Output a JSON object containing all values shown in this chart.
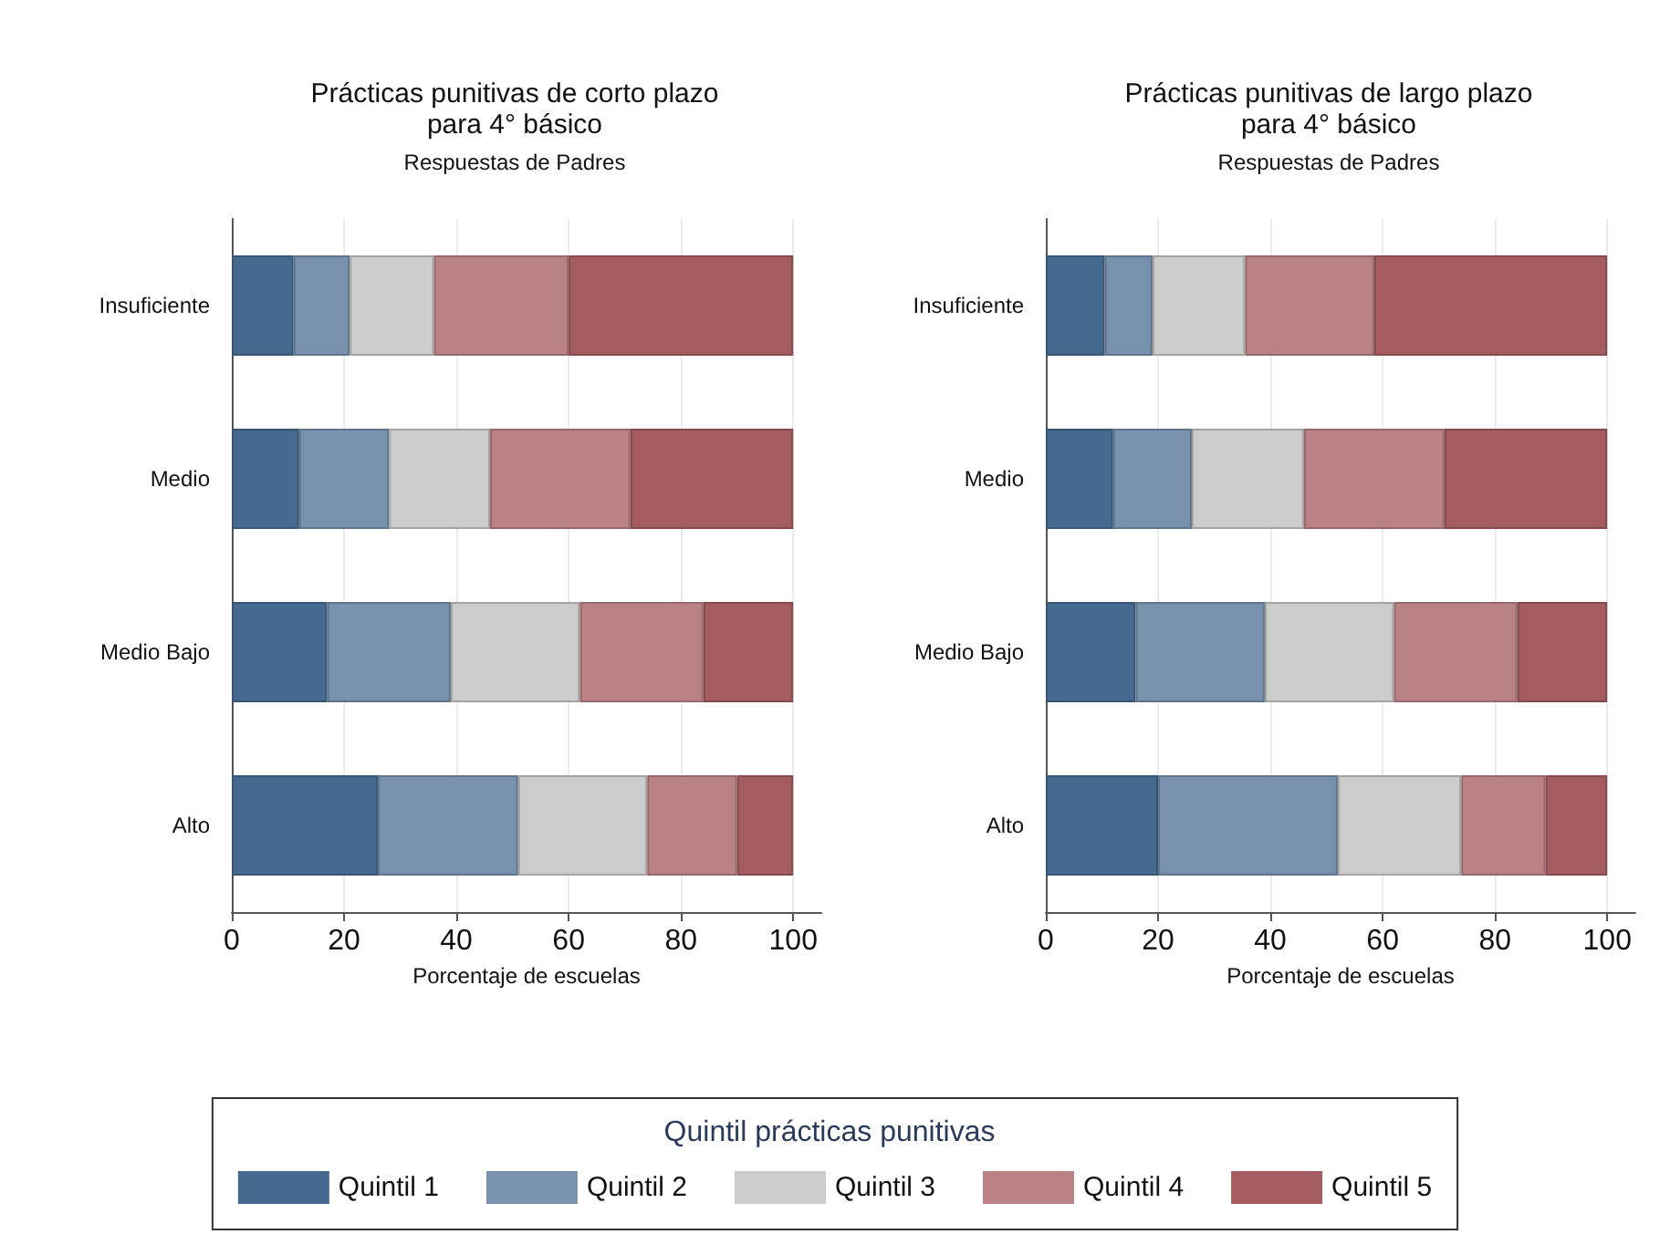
{
  "chart_data": [
    {
      "type": "bar",
      "orientation": "horizontal",
      "stacked": true,
      "title": "Prácticas punitivas de corto plazo\npara 4° básico",
      "subtitle": "Respuestas de Padres",
      "xlabel": "Porcentaje de escuelas",
      "categories": [
        "Insuficiente",
        "Medio",
        "Medio Bajo",
        "Alto"
      ],
      "xlim": [
        0,
        105
      ],
      "xticks": [
        0,
        20,
        40,
        60,
        80,
        100
      ],
      "grid": "x",
      "legend": "bottom",
      "legend_title": "Quintil prácticas punitivas",
      "series": [
        {
          "name": "Quintil 1",
          "color": "#466a8f",
          "values": [
            11,
            12,
            17,
            26
          ]
        },
        {
          "name": "Quintil 2",
          "color": "#7892ad",
          "values": [
            10,
            16,
            22,
            25
          ]
        },
        {
          "name": "Quintil 3",
          "color": "#cccccc",
          "values": [
            15,
            18,
            23,
            23
          ]
        },
        {
          "name": "Quintil 4",
          "color": "#ba8285",
          "values": [
            24,
            25,
            22,
            16
          ]
        },
        {
          "name": "Quintil 5",
          "color": "#a55c60",
          "values": [
            40,
            29,
            16,
            10
          ]
        }
      ]
    },
    {
      "type": "bar",
      "orientation": "horizontal",
      "stacked": true,
      "title": "Prácticas punitivas de largo plazo\npara 4° básico",
      "subtitle": "Respuestas de Padres",
      "xlabel": "Porcentaje de escuelas",
      "categories": [
        "Insuficiente",
        "Medio",
        "Medio Bajo",
        "Alto"
      ],
      "xlim": [
        0,
        105
      ],
      "xticks": [
        0,
        20,
        40,
        60,
        80,
        100
      ],
      "grid": "x",
      "series": [
        {
          "name": "Quintil 1",
          "color": "#466a8f",
          "values": [
            10.5,
            12,
            16,
            20
          ]
        },
        {
          "name": "Quintil 2",
          "color": "#7892ad",
          "values": [
            8.5,
            14,
            23,
            32
          ]
        },
        {
          "name": "Quintil 3",
          "color": "#cccccc",
          "values": [
            16.5,
            20,
            23,
            22
          ]
        },
        {
          "name": "Quintil 4",
          "color": "#ba8285",
          "values": [
            23,
            25,
            22,
            15
          ]
        },
        {
          "name": "Quintil 5",
          "color": "#a55c60",
          "values": [
            41.5,
            29,
            16,
            11
          ]
        }
      ]
    }
  ]
}
